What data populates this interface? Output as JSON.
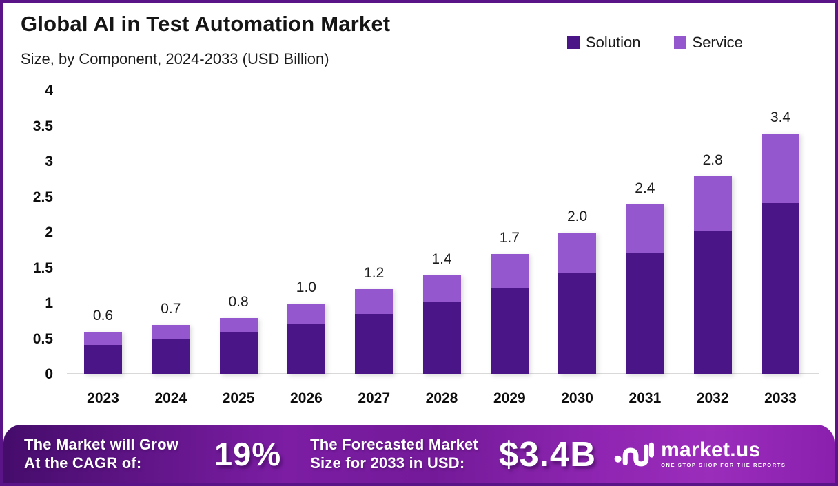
{
  "header": {
    "title": "Global AI in Test Automation Market",
    "subtitle": "Size, by Component, 2024-2033 (USD Billion)"
  },
  "legend": [
    {
      "label": "Solution",
      "color": "#4a1586"
    },
    {
      "label": "Service",
      "color": "#9457cd"
    }
  ],
  "chart_data": {
    "type": "bar",
    "stacked": true,
    "title": "Global AI in Test Automation Market",
    "subtitle": "Size, by Component, 2024-2033 (USD Billion)",
    "xlabel": "",
    "ylabel": "USD Billion",
    "ylim": [
      0,
      4
    ],
    "grid": false,
    "legend_position": "top-right",
    "categories": [
      "2023",
      "2024",
      "2025",
      "2026",
      "2027",
      "2028",
      "2029",
      "2030",
      "2031",
      "2032",
      "2033"
    ],
    "series": [
      {
        "name": "Solution",
        "color": "#4a1586",
        "values": [
          0.42,
          0.5,
          0.6,
          0.71,
          0.85,
          1.02,
          1.21,
          1.44,
          1.71,
          2.03,
          2.42
        ]
      },
      {
        "name": "Service",
        "color": "#9457cd",
        "values": [
          0.18,
          0.2,
          0.2,
          0.29,
          0.35,
          0.38,
          0.49,
          0.56,
          0.69,
          0.77,
          0.98
        ]
      }
    ],
    "totals": [
      0.6,
      0.7,
      0.8,
      1.0,
      1.2,
      1.4,
      1.7,
      2.0,
      2.4,
      2.8,
      3.4
    ],
    "total_labels": [
      "0.6",
      "0.7",
      "0.8",
      "1.0",
      "1.2",
      "1.4",
      "1.7",
      "2.0",
      "2.4",
      "2.8",
      "3.4"
    ],
    "yticks": [
      0,
      0.5,
      1,
      1.5,
      2,
      2.5,
      3,
      3.5,
      4
    ],
    "ytick_labels": [
      "0",
      "0.5",
      "1",
      "1.5",
      "2",
      "2.5",
      "3",
      "3.5",
      "4"
    ]
  },
  "banner": {
    "cagr_label_line1": "The Market will Grow",
    "cagr_label_line2": "At the CAGR of:",
    "cagr_value": "19%",
    "forecast_label_line1": "The Forecasted Market",
    "forecast_label_line2": "Size for 2033 in USD:",
    "forecast_value": "$3.4B",
    "logo_text": "market.us",
    "logo_tagline": "ONE STOP SHOP FOR THE REPORTS"
  },
  "colors": {
    "solution": "#4a1586",
    "service": "#9457cd",
    "border": "#5b1487",
    "baseline": "#d9d9d9",
    "banner_gradient_start": "#450c6b",
    "banner_gradient_end": "#9b2dbb"
  }
}
